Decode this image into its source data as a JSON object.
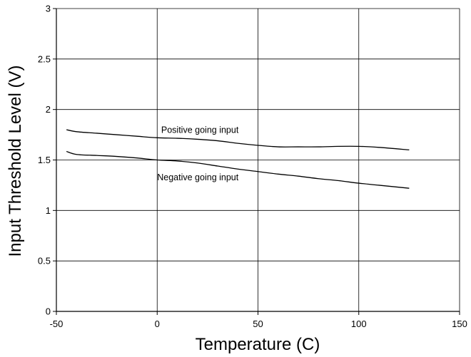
{
  "chart_data": {
    "type": "line",
    "xlabel": "Temperature (C)",
    "ylabel": "Input Threshold Level (V)",
    "xlim": [
      -50,
      150
    ],
    "ylim": [
      0,
      3
    ],
    "x_ticks": [
      -50,
      0,
      50,
      100,
      150
    ],
    "y_ticks": [
      0,
      0.5,
      1,
      1.5,
      2,
      2.5,
      3
    ],
    "x_tick_labels": [
      "-50",
      "0",
      "50",
      "100",
      "150"
    ],
    "y_tick_labels": [
      "0",
      "0.5",
      "1",
      "1.5",
      "2",
      "2.5",
      "3"
    ],
    "grid": true,
    "series": [
      {
        "x": [
          -45,
          -40,
          -30,
          -20,
          -10,
          0,
          10,
          20,
          30,
          40,
          50,
          60,
          70,
          80,
          90,
          100,
          110,
          125
        ],
        "y": [
          1.8,
          1.78,
          1.765,
          1.75,
          1.735,
          1.72,
          1.715,
          1.705,
          1.69,
          1.665,
          1.645,
          1.63,
          1.63,
          1.63,
          1.635,
          1.635,
          1.625,
          1.6
        ]
      },
      {
        "x": [
          -45,
          -40,
          -30,
          -20,
          -10,
          0,
          10,
          20,
          30,
          40,
          50,
          60,
          70,
          80,
          90,
          100,
          110,
          125
        ],
        "y": [
          1.585,
          1.555,
          1.545,
          1.535,
          1.52,
          1.5,
          1.49,
          1.47,
          1.44,
          1.41,
          1.385,
          1.36,
          1.34,
          1.315,
          1.295,
          1.27,
          1.25,
          1.22
        ]
      }
    ],
    "annotations": [
      {
        "text": "Positive going input",
        "x": 2,
        "y": 1.77
      },
      {
        "text": "Negative going input",
        "x": 0,
        "y": 1.3
      }
    ]
  }
}
